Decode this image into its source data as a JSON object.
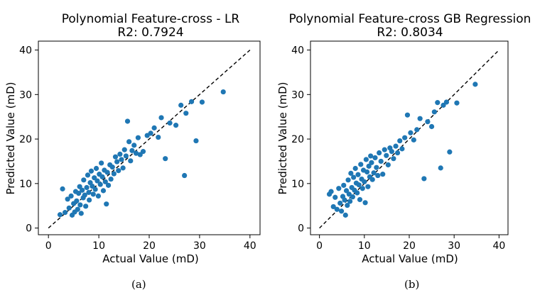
{
  "chart_data": [
    {
      "type": "scatter",
      "title": "Polynomial Feature-cross - LR",
      "subtitle": "R2: 0.7924",
      "xlabel": "Actual Value (mD)",
      "ylabel": "Predicted Value (mD)",
      "xlim": [
        -2,
        42
      ],
      "ylim": [
        -1.5,
        42
      ],
      "xticks": [
        0,
        10,
        20,
        30,
        40
      ],
      "yticks": [
        0,
        10,
        20,
        30,
        40
      ],
      "xtick_labels": [
        "0",
        "10",
        "20",
        "30",
        "40"
      ],
      "ytick_labels": [
        "0",
        "10",
        "20",
        "30",
        "40"
      ],
      "reference_line": {
        "from": [
          0,
          0
        ],
        "to": [
          40,
          40
        ],
        "style": "dashed"
      },
      "point_color": "#1f77b4",
      "points": [
        [
          2.3,
          3.0
        ],
        [
          2.8,
          8.8
        ],
        [
          3.3,
          3.5
        ],
        [
          3.8,
          6.5
        ],
        [
          4.1,
          4.5
        ],
        [
          4.5,
          7.2
        ],
        [
          4.7,
          2.9
        ],
        [
          5.0,
          5.5
        ],
        [
          5.2,
          3.6
        ],
        [
          5.4,
          8.2
        ],
        [
          5.6,
          6.1
        ],
        [
          5.8,
          4.2
        ],
        [
          6.0,
          7.8
        ],
        [
          6.2,
          9.3
        ],
        [
          6.3,
          5.2
        ],
        [
          6.5,
          3.3
        ],
        [
          6.7,
          8.5
        ],
        [
          6.9,
          6.8
        ],
        [
          7.0,
          10.8
        ],
        [
          7.2,
          7.4
        ],
        [
          7.4,
          4.9
        ],
        [
          7.6,
          9.1
        ],
        [
          7.8,
          11.9
        ],
        [
          8.0,
          8.0
        ],
        [
          8.1,
          6.3
        ],
        [
          8.3,
          10.2
        ],
        [
          8.5,
          12.8
        ],
        [
          8.7,
          9.4
        ],
        [
          8.9,
          7.6
        ],
        [
          9.1,
          11.3
        ],
        [
          9.3,
          8.7
        ],
        [
          9.5,
          13.4
        ],
        [
          9.7,
          10.6
        ],
        [
          9.9,
          7.2
        ],
        [
          10.1,
          12.1
        ],
        [
          10.3,
          9.8
        ],
        [
          10.5,
          14.6
        ],
        [
          10.7,
          11.5
        ],
        [
          10.9,
          8.4
        ],
        [
          11.1,
          13.0
        ],
        [
          11.3,
          10.4
        ],
        [
          11.5,
          5.4
        ],
        [
          11.7,
          12.5
        ],
        [
          11.9,
          9.6
        ],
        [
          12.2,
          14.2
        ],
        [
          12.4,
          11.0
        ],
        [
          12.7,
          13.7
        ],
        [
          13.0,
          12.2
        ],
        [
          13.3,
          16.0
        ],
        [
          13.6,
          14.9
        ],
        [
          13.9,
          12.9
        ],
        [
          14.2,
          16.6
        ],
        [
          14.5,
          15.4
        ],
        [
          14.8,
          13.5
        ],
        [
          15.1,
          17.6
        ],
        [
          15.4,
          16.2
        ],
        [
          15.7,
          24.0
        ],
        [
          16.0,
          19.4
        ],
        [
          16.3,
          15.1
        ],
        [
          16.6,
          17.4
        ],
        [
          17.0,
          18.6
        ],
        [
          17.4,
          16.8
        ],
        [
          17.8,
          20.3
        ],
        [
          18.2,
          16.5
        ],
        [
          18.8,
          17.2
        ],
        [
          19.6,
          20.8
        ],
        [
          20.3,
          21.3
        ],
        [
          21.0,
          22.5
        ],
        [
          21.8,
          20.4
        ],
        [
          22.4,
          24.8
        ],
        [
          23.2,
          15.6
        ],
        [
          24.1,
          23.6
        ],
        [
          25.3,
          23.1
        ],
        [
          26.3,
          27.6
        ],
        [
          27.0,
          11.8
        ],
        [
          27.3,
          25.8
        ],
        [
          28.4,
          28.4
        ],
        [
          29.3,
          19.6
        ],
        [
          30.5,
          28.3
        ],
        [
          34.7,
          30.6
        ]
      ]
    },
    {
      "type": "scatter",
      "title": "Polynomial Feature-cross GB Regression",
      "subtitle": "R2: 0.8034",
      "xlabel": "Actual Value (mD)",
      "ylabel": "Predicted Value (mD)",
      "xlim": [
        -2,
        42
      ],
      "ylim": [
        -1.5,
        42
      ],
      "xticks": [
        0,
        10,
        20,
        30,
        40
      ],
      "yticks": [
        0,
        10,
        20,
        30,
        40
      ],
      "xtick_labels": [
        "0",
        "10",
        "20",
        "30",
        "40"
      ],
      "ytick_labels": [
        "0",
        "10",
        "20",
        "30",
        "40"
      ],
      "reference_line": {
        "from": [
          0,
          0
        ],
        "to": [
          40,
          40
        ],
        "style": "dashed"
      },
      "point_color": "#1f77b4",
      "points": [
        [
          2.2,
          7.6
        ],
        [
          2.6,
          8.2
        ],
        [
          3.1,
          4.8
        ],
        [
          3.5,
          6.9
        ],
        [
          3.9,
          4.2
        ],
        [
          4.3,
          8.9
        ],
        [
          4.6,
          5.6
        ],
        [
          4.9,
          3.8
        ],
        [
          5.2,
          7.1
        ],
        [
          5.4,
          9.6
        ],
        [
          5.6,
          6.3
        ],
        [
          5.8,
          2.9
        ],
        [
          6.0,
          8.4
        ],
        [
          6.2,
          5.1
        ],
        [
          6.4,
          10.8
        ],
        [
          6.6,
          7.6
        ],
        [
          6.8,
          6.0
        ],
        [
          7.0,
          12.3
        ],
        [
          7.2,
          9.1
        ],
        [
          7.4,
          7.0
        ],
        [
          7.6,
          11.4
        ],
        [
          7.8,
          8.5
        ],
        [
          8.0,
          13.4
        ],
        [
          8.2,
          10.1
        ],
        [
          8.4,
          7.9
        ],
        [
          8.6,
          12.0
        ],
        [
          8.8,
          9.7
        ],
        [
          9.0,
          6.4
        ],
        [
          9.2,
          14.3
        ],
        [
          9.4,
          11.0
        ],
        [
          9.6,
          8.9
        ],
        [
          9.8,
          13.0
        ],
        [
          10.0,
          10.4
        ],
        [
          10.2,
          5.7
        ],
        [
          10.4,
          15.4
        ],
        [
          10.6,
          12.6
        ],
        [
          10.8,
          9.3
        ],
        [
          11.0,
          13.9
        ],
        [
          11.2,
          11.5
        ],
        [
          11.4,
          16.2
        ],
        [
          11.6,
          14.7
        ],
        [
          11.8,
          10.9
        ],
        [
          12.1,
          12.4
        ],
        [
          12.4,
          15.8
        ],
        [
          12.7,
          13.6
        ],
        [
          13.0,
          11.8
        ],
        [
          13.3,
          16.9
        ],
        [
          13.7,
          15.0
        ],
        [
          14.1,
          12.1
        ],
        [
          14.5,
          17.6
        ],
        [
          14.9,
          16.3
        ],
        [
          15.3,
          14.2
        ],
        [
          15.7,
          18.0
        ],
        [
          16.1,
          17.2
        ],
        [
          16.5,
          15.6
        ],
        [
          17.0,
          18.4
        ],
        [
          17.4,
          16.9
        ],
        [
          17.9,
          19.6
        ],
        [
          18.4,
          17.8
        ],
        [
          19.0,
          20.3
        ],
        [
          19.6,
          25.4
        ],
        [
          20.3,
          21.4
        ],
        [
          21.0,
          19.8
        ],
        [
          21.7,
          22.1
        ],
        [
          22.4,
          24.6
        ],
        [
          23.3,
          11.1
        ],
        [
          24.1,
          23.9
        ],
        [
          25.0,
          22.8
        ],
        [
          25.6,
          26.1
        ],
        [
          26.3,
          28.2
        ],
        [
          27.0,
          13.5
        ],
        [
          27.6,
          27.6
        ],
        [
          28.3,
          28.3
        ],
        [
          29.0,
          17.1
        ],
        [
          30.6,
          28.1
        ],
        [
          34.7,
          32.3
        ]
      ]
    }
  ],
  "captions": {
    "a": "(a)",
    "b": "(b)"
  }
}
